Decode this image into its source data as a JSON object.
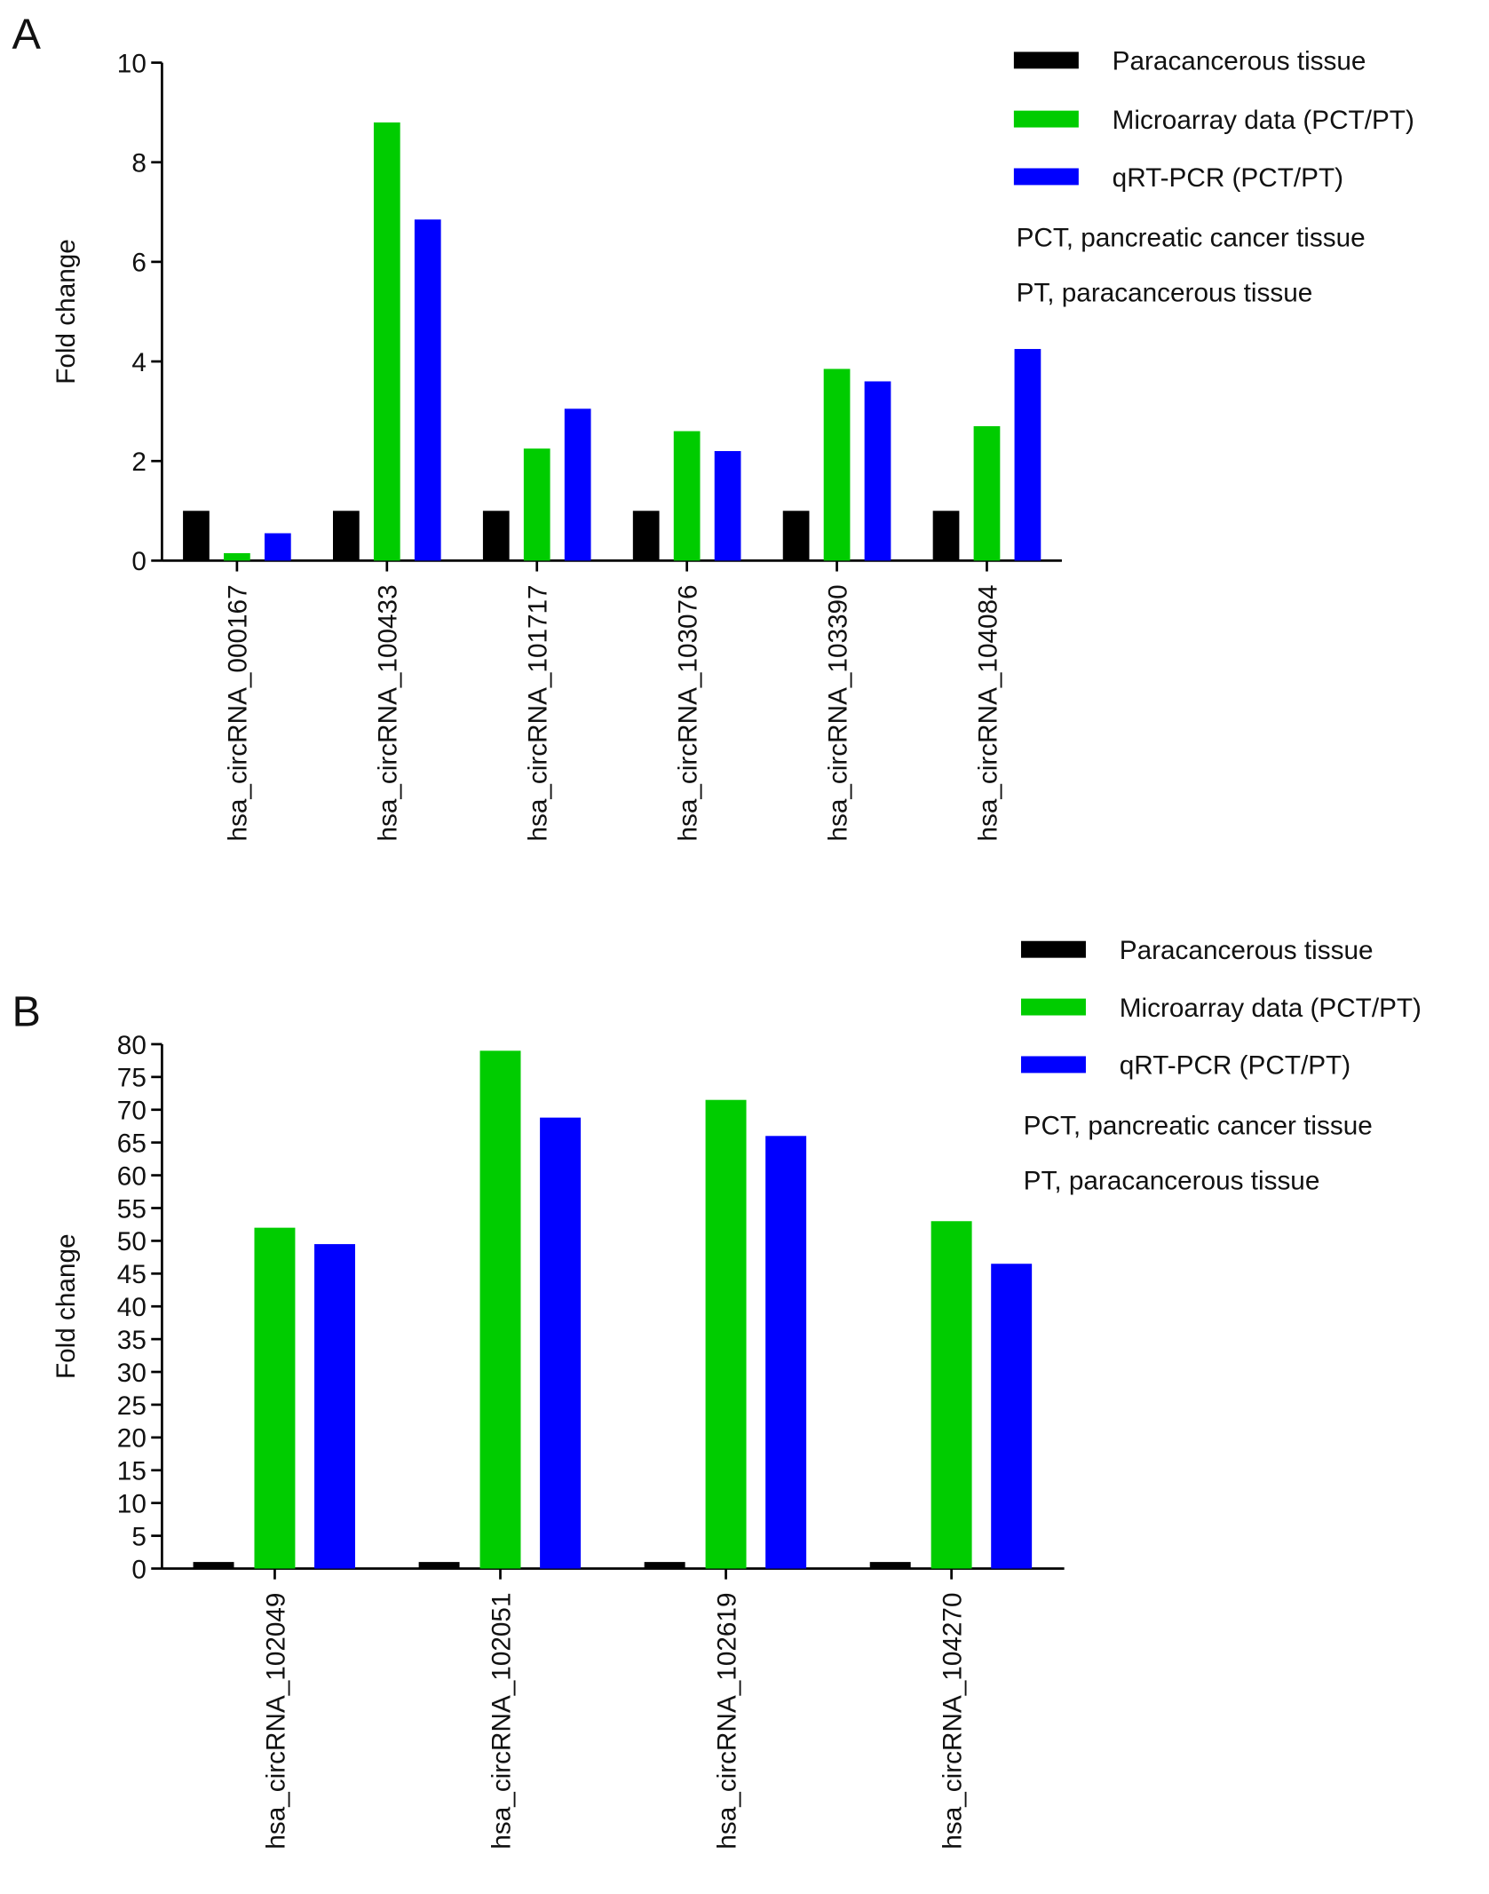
{
  "chart_data": [
    {
      "type": "bar",
      "panel_label": "A",
      "ylabel": "Fold change",
      "categories": [
        "hsa_circRNA_000167",
        "hsa_circRNA_100433",
        "hsa_circRNA_101717",
        "hsa_circRNA_103076",
        "hsa_circRNA_103390",
        "hsa_circRNA_104084"
      ],
      "series": [
        {
          "name": "Paracancerous tissue",
          "color": "#000000",
          "values": [
            1,
            1,
            1,
            1,
            1,
            1
          ]
        },
        {
          "name": "Microarray data (PCT/PT)",
          "color": "#00cc00",
          "values": [
            0.15,
            8.8,
            2.25,
            2.6,
            3.85,
            2.7
          ]
        },
        {
          "name": "qRT-PCR (PCT/PT)",
          "color": "#0000ff",
          "values": [
            0.55,
            6.85,
            3.05,
            2.2,
            3.6,
            4.25
          ]
        }
      ],
      "annotations": [
        "PCT, pancreatic cancer tissue",
        "PT, paracancerous tissue"
      ],
      "ylim": [
        0,
        10
      ],
      "yticks": [
        0,
        2,
        4,
        6,
        8,
        10
      ]
    },
    {
      "type": "bar",
      "panel_label": "B",
      "ylabel": "Fold change",
      "categories": [
        "hsa_circRNA_102049",
        "hsa_circRNA_102051",
        "hsa_circRNA_102619",
        "hsa_circRNA_104270"
      ],
      "series": [
        {
          "name": "Paracancerous tissue",
          "color": "#000000",
          "values": [
            1,
            1,
            1,
            1
          ]
        },
        {
          "name": "Microarray data (PCT/PT)",
          "color": "#00cc00",
          "values": [
            52,
            79,
            71.5,
            53
          ]
        },
        {
          "name": "qRT-PCR (PCT/PT)",
          "color": "#0000ff",
          "values": [
            49.5,
            68.8,
            66,
            46.5
          ]
        }
      ],
      "annotations": [
        "PCT, pancreatic cancer tissue",
        "PT, paracancerous tissue"
      ],
      "ylim": [
        0,
        80
      ],
      "yticks": [
        0,
        5,
        10,
        15,
        20,
        25,
        30,
        35,
        40,
        45,
        50,
        55,
        60,
        65,
        70,
        75,
        80
      ]
    }
  ]
}
